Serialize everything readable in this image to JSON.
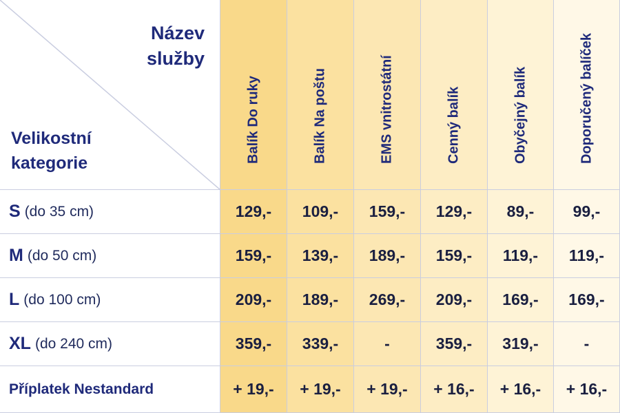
{
  "corner": {
    "service_label": "Název služby",
    "size_label": "Velikostní kategorie"
  },
  "services": [
    "Balík Do ruky",
    "Balík Na poštu",
    "EMS vnitrostátní",
    "Cenný balík",
    "Obyčejný balík",
    "Doporučený balíček"
  ],
  "rows": [
    {
      "code": "S",
      "range": "(do 35 cm)",
      "prices": [
        "129,-",
        "109,-",
        "159,-",
        "129,-",
        "89,-",
        "99,-"
      ]
    },
    {
      "code": "M",
      "range": "(do 50 cm)",
      "prices": [
        "159,-",
        "139,-",
        "189,-",
        "159,-",
        "119,-",
        "119,-"
      ]
    },
    {
      "code": "L",
      "range": "(do 100 cm)",
      "prices": [
        "209,-",
        "189,-",
        "269,-",
        "209,-",
        "169,-",
        "169,-"
      ]
    },
    {
      "code": "XL",
      "range": "(do 240 cm)",
      "prices": [
        "359,-",
        "339,-",
        "-",
        "359,-",
        "319,-",
        "-"
      ]
    }
  ],
  "surcharge": {
    "label": "Příplatek Nestandard",
    "prices": [
      "+ 19,-",
      "+ 19,-",
      "+ 19,-",
      "+ 16,-",
      "+ 16,-",
      "+ 16,-"
    ]
  },
  "colors": {
    "header_text": "#1f2a7a",
    "column_gradient_start": "#f9d98a",
    "column_gradient_end": "#fff8e7"
  }
}
